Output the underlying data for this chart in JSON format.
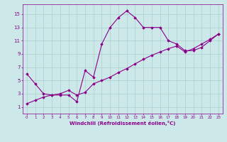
{
  "line1_x": [
    0,
    1,
    2,
    3,
    4,
    5,
    6,
    7,
    8,
    9,
    10,
    11,
    12,
    13,
    14,
    15,
    16,
    17,
    18,
    19,
    20,
    21,
    22,
    23
  ],
  "line1_y": [
    6.0,
    4.5,
    3.0,
    2.8,
    2.8,
    2.8,
    1.8,
    6.5,
    5.5,
    10.5,
    13.0,
    14.5,
    15.5,
    14.5,
    13.0,
    13.0,
    13.0,
    11.0,
    10.5,
    9.5,
    9.5,
    10.0,
    11.0,
    12.0
  ],
  "line2_x": [
    0,
    1,
    2,
    3,
    4,
    5,
    6,
    7,
    8,
    9,
    10,
    11,
    12,
    13,
    14,
    15,
    16,
    17,
    18,
    19,
    20,
    21,
    22,
    23
  ],
  "line2_y": [
    1.5,
    2.0,
    2.5,
    2.8,
    3.0,
    3.5,
    2.8,
    3.2,
    4.5,
    5.0,
    5.5,
    6.2,
    6.8,
    7.5,
    8.2,
    8.8,
    9.3,
    9.8,
    10.2,
    9.3,
    9.8,
    10.5,
    11.2,
    12.0
  ],
  "line_color": "#8B008B",
  "bg_color": "#cce8e8",
  "grid_color": "#aacfcf",
  "xlabel": "Windchill (Refroidissement éolien,°C)",
  "yticks": [
    1,
    3,
    5,
    7,
    9,
    11,
    13,
    15
  ],
  "xticks": [
    0,
    1,
    2,
    3,
    4,
    5,
    6,
    7,
    8,
    9,
    10,
    11,
    12,
    13,
    14,
    15,
    16,
    17,
    18,
    19,
    20,
    21,
    22,
    23
  ],
  "xlim": [
    -0.5,
    23.5
  ],
  "ylim": [
    0,
    16.5
  ],
  "font_color": "#8B008B",
  "marker": "D",
  "markersize": 1.8,
  "linewidth": 0.8
}
